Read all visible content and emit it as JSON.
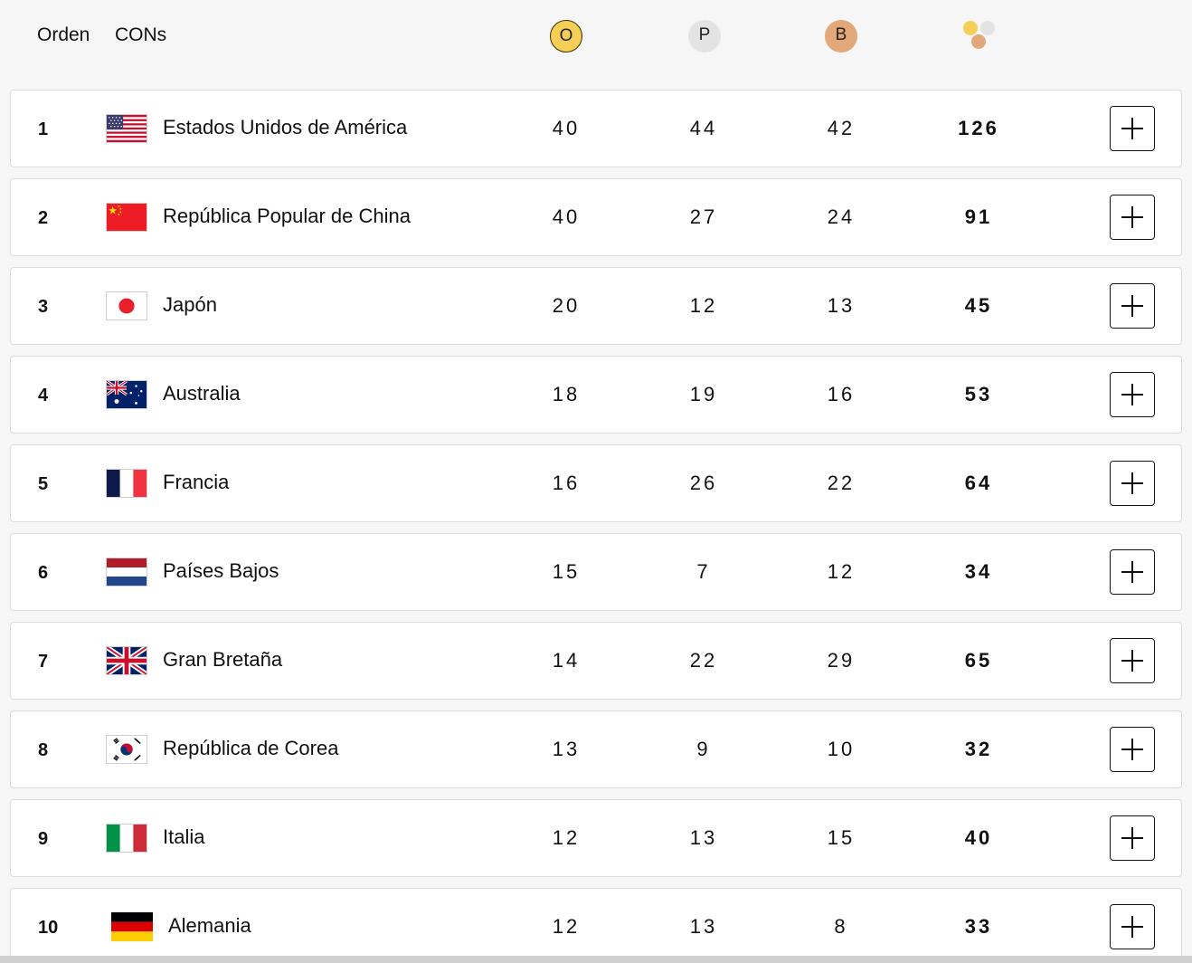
{
  "header": {
    "rank_label": "Orden",
    "noc_label": "CONs",
    "gold_badge": "O",
    "silver_badge": "P",
    "bronze_badge": "B"
  },
  "colors": {
    "gold": "#f5cf55",
    "silver": "#e3e3e3",
    "bronze": "#e3a87a"
  },
  "rows": [
    {
      "rank": "1",
      "country": "Estados Unidos de América",
      "flag": "usa-flag-icon",
      "gold": "40",
      "silver": "44",
      "bronze": "42",
      "total": "126"
    },
    {
      "rank": "2",
      "country": "República Popular de China",
      "flag": "china-flag-icon",
      "gold": "40",
      "silver": "27",
      "bronze": "24",
      "total": "91"
    },
    {
      "rank": "3",
      "country": "Japón",
      "flag": "japan-flag-icon",
      "gold": "20",
      "silver": "12",
      "bronze": "13",
      "total": "45"
    },
    {
      "rank": "4",
      "country": "Australia",
      "flag": "australia-flag-icon",
      "gold": "18",
      "silver": "19",
      "bronze": "16",
      "total": "53"
    },
    {
      "rank": "5",
      "country": "Francia",
      "flag": "france-flag-icon",
      "gold": "16",
      "silver": "26",
      "bronze": "22",
      "total": "64"
    },
    {
      "rank": "6",
      "country": "Países Bajos",
      "flag": "netherlands-flag-icon",
      "gold": "15",
      "silver": "7",
      "bronze": "12",
      "total": "34"
    },
    {
      "rank": "7",
      "country": "Gran Bretaña",
      "flag": "great-britain-flag-icon",
      "gold": "14",
      "silver": "22",
      "bronze": "29",
      "total": "65"
    },
    {
      "rank": "8",
      "country": "República de Corea",
      "flag": "korea-flag-icon",
      "gold": "13",
      "silver": "9",
      "bronze": "10",
      "total": "32"
    },
    {
      "rank": "9",
      "country": "Italia",
      "flag": "italy-flag-icon",
      "gold": "12",
      "silver": "13",
      "bronze": "15",
      "total": "40"
    },
    {
      "rank": "10",
      "country": "Alemania",
      "flag": "germany-flag-icon",
      "gold": "12",
      "silver": "13",
      "bronze": "8",
      "total": "33"
    }
  ]
}
